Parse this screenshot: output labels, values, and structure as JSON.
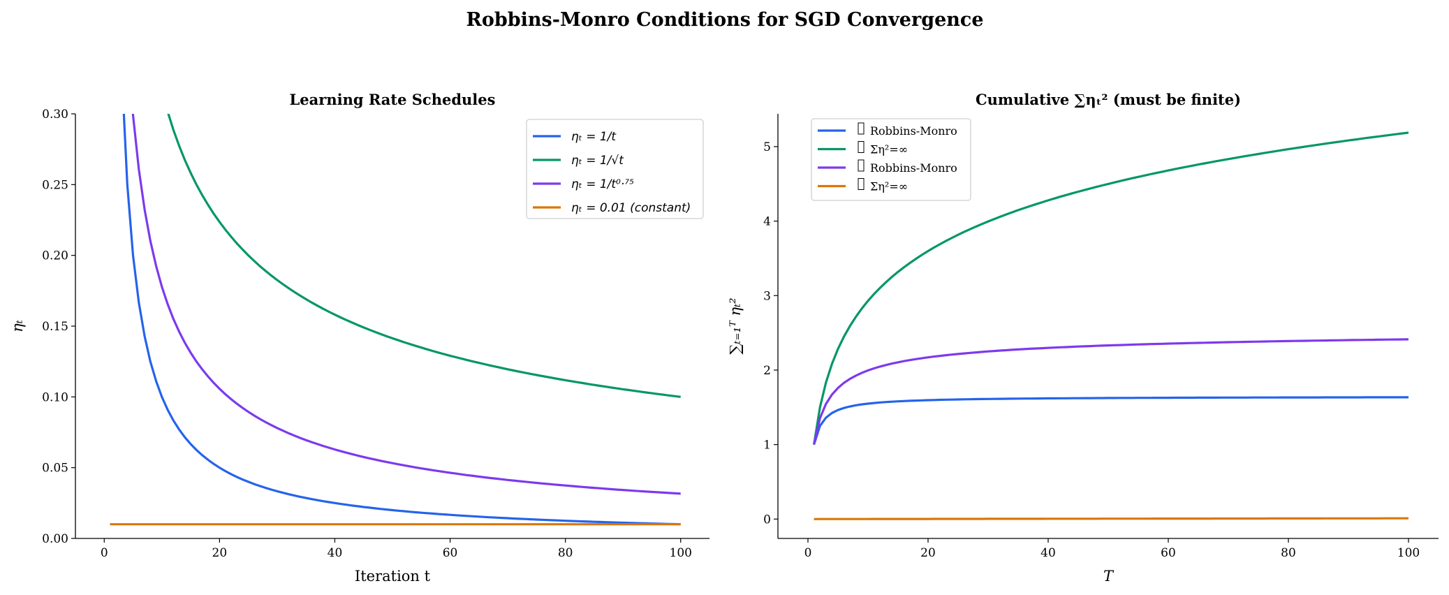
{
  "suptitle": "Robbins-Monro Conditions for SGD Convergence",
  "chart_data": [
    {
      "type": "line",
      "title": "Learning Rate Schedules",
      "xlabel": "Iteration t",
      "ylabel": "ηₜ",
      "xlim": [
        -5,
        105
      ],
      "ylim": [
        0,
        0.3
      ],
      "xticks": [
        0,
        20,
        40,
        60,
        80,
        100
      ],
      "xtick_labels": [
        "0",
        "20",
        "40",
        "60",
        "80",
        "100"
      ],
      "yticks": [
        0,
        0.05,
        0.1,
        0.15,
        0.2,
        0.25,
        0.3
      ],
      "ytick_labels": [
        "0.00",
        "0.05",
        "0.10",
        "0.15",
        "0.20",
        "0.25",
        "0.30"
      ],
      "x_range": [
        1,
        100
      ],
      "grid": false,
      "legend": "top-right",
      "series": [
        {
          "name": "ηₜ = 1/t",
          "formula": "1/t",
          "color": "#2563eb"
        },
        {
          "name": "ηₜ = 1/√t",
          "formula": "1/sqrt(t)",
          "color": "#059669"
        },
        {
          "name": "ηₜ = 1/t⁰·⁷⁵",
          "formula": "1/t^0.75",
          "color": "#7c3aed"
        },
        {
          "name": "ηₜ = 0.01 (constant)",
          "formula": "0.01",
          "color": "#d97706"
        }
      ]
    },
    {
      "type": "line",
      "title": "Cumulative ∑ηₜ² (must be finite)",
      "xlabel": "T",
      "ylabel": "∑ₜ₌₁ᵀ ηₜ²",
      "xlim": [
        -5,
        105
      ],
      "ylim": [
        -0.26,
        5.44
      ],
      "xticks": [
        0,
        20,
        40,
        60,
        80,
        100
      ],
      "xtick_labels": [
        "0",
        "20",
        "40",
        "60",
        "80",
        "100"
      ],
      "yticks": [
        0,
        1,
        2,
        3,
        4,
        5
      ],
      "ytick_labels": [
        "0",
        "1",
        "2",
        "3",
        "4",
        "5"
      ],
      "x_range": [
        1,
        100
      ],
      "grid": false,
      "legend": "top-left",
      "series": [
        {
          "name": "Robbins-Monro",
          "formula": "cumsum (1/t)^2",
          "color": "#2563eb",
          "final_value": 1.63
        },
        {
          "name": "Ση²=∞",
          "formula": "cumsum (1/sqrt(t))^2",
          "color": "#059669",
          "final_value": 5.19
        },
        {
          "name": "Robbins-Monro",
          "formula": "cumsum (1/t^0.75)^2",
          "color": "#7c3aed",
          "final_value": 2.41
        },
        {
          "name": "Ση²=∞",
          "formula": "cumsum 0.01^2",
          "color": "#d97706",
          "final_value": 0.01
        }
      ]
    }
  ]
}
